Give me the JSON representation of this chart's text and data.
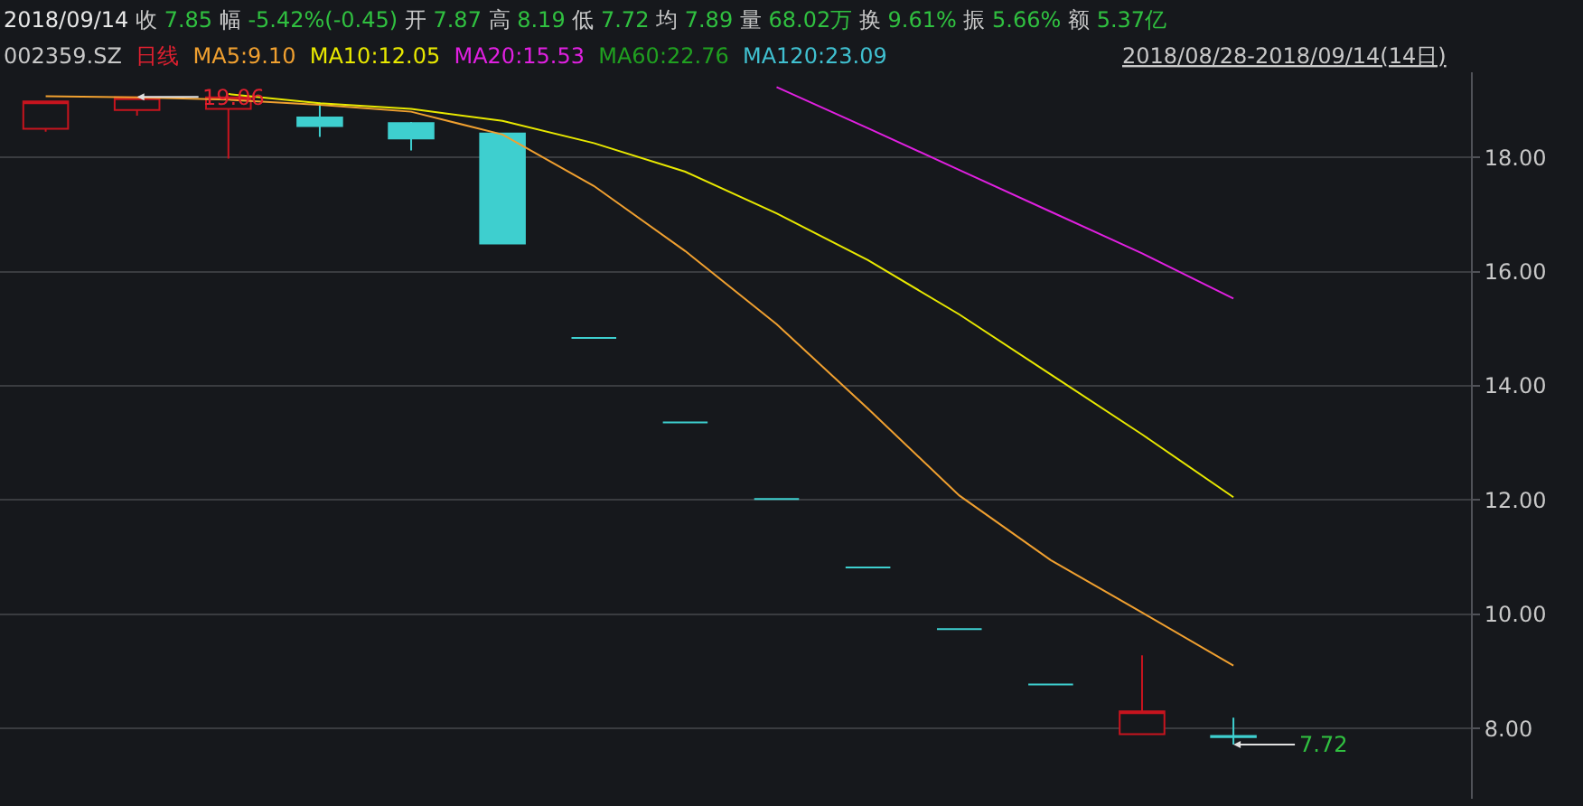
{
  "chart_data": {
    "type": "candlestick",
    "title": "2018/09/14 收 7.85 幅 -5.42%(-0.45) 开 7.87 高 8.19 低 7.72 均 7.89 量 68.02万 换 9.61% 振 5.66% 额 5.37亿",
    "subtitle": "002359.SZ 日线",
    "categories": [
      null,
      null,
      null,
      null,
      null,
      null,
      null,
      null,
      null,
      null,
      null,
      null,
      null,
      null
    ],
    "series": [
      {
        "ohlc": [
          [
            18.5,
            18.98,
            18.45,
            18.98
          ],
          [
            18.83,
            19.06,
            18.73,
            19.05
          ],
          [
            18.85,
            19.05,
            17.98,
            19.05
          ],
          [
            18.7,
            18.96,
            18.36,
            18.55
          ],
          [
            18.6,
            18.62,
            18.12,
            18.33
          ],
          [
            18.42,
            18.42,
            16.49,
            16.49
          ],
          [
            14.84,
            14.84,
            14.84,
            14.84
          ],
          [
            13.36,
            13.36,
            13.36,
            13.36
          ],
          [
            12.02,
            12.02,
            12.02,
            12.02
          ],
          [
            10.82,
            10.82,
            10.82,
            10.82
          ],
          [
            9.74,
            9.74,
            9.74,
            9.74
          ],
          [
            8.77,
            8.77,
            8.77,
            8.77
          ],
          [
            7.9,
            9.28,
            7.9,
            8.3
          ],
          [
            7.87,
            8.19,
            7.72,
            7.85
          ]
        ],
        "colors": [
          "#c8141e",
          "#c8141e",
          "#c8141e",
          "#3ecfcf",
          "#3ecfcf",
          "#3ecfcf",
          "#3ecfcf",
          "#3ecfcf",
          "#3ecfcf",
          "#3ecfcf",
          "#3ecfcf",
          "#3ecfcf",
          "#c8141e",
          "#3ecfcf"
        ]
      },
      {
        "type": "line",
        "name": "MA5:9.10",
        "color": "#f0a030",
        "values": [
          19.07,
          19.05,
          19.01,
          18.92,
          18.8,
          18.4,
          17.5,
          16.36,
          15.08,
          13.6,
          12.08,
          10.95,
          10.03,
          9.1
        ]
      },
      {
        "type": "line",
        "name": "MA10:12.05",
        "color": "#e8e800",
        "values": [
          null,
          null,
          19.11,
          18.95,
          18.85,
          18.64,
          18.25,
          17.75,
          17.02,
          16.2,
          15.25,
          14.2,
          13.15,
          12.05
        ]
      },
      {
        "type": "line",
        "name": "MA20:15.53",
        "color": "#e020e0",
        "values": [
          null,
          null,
          null,
          null,
          null,
          null,
          null,
          null,
          19.23,
          18.51,
          17.78,
          17.05,
          16.32,
          15.53
        ]
      },
      {
        "type": "line",
        "name": "MA60:22.76",
        "color": "#20a020",
        "values": [
          null,
          null,
          null,
          null,
          null,
          null,
          null,
          null,
          null,
          null,
          null,
          null,
          null,
          null
        ]
      },
      {
        "type": "line",
        "name": "MA120:23.09",
        "color": "#40c0d0",
        "values": [
          null,
          null,
          null,
          null,
          null,
          null,
          null,
          null,
          null,
          null,
          null,
          null,
          null,
          null
        ]
      }
    ],
    "annotations": [
      "2018/08/28-2018/09/14(14日)",
      "19.06",
      "7.72"
    ],
    "ylim": [
      6.77,
      19.49
    ],
    "yticks": [
      {
        "value": 8,
        "label": "8.00"
      },
      {
        "value": 10,
        "label": "10.00"
      },
      {
        "value": 12,
        "label": "12.00"
      },
      {
        "value": 14,
        "label": "14.00"
      },
      {
        "value": 16,
        "label": "16.00"
      },
      {
        "value": 18,
        "label": "18.00"
      }
    ],
    "grid": "y",
    "legend": false
  }
}
